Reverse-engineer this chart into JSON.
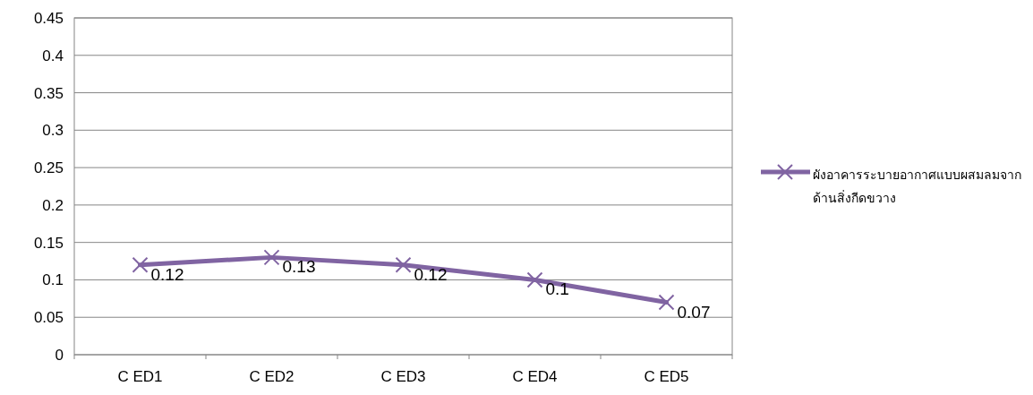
{
  "chart_data": {
    "type": "line",
    "categories": [
      "C ED1",
      "C ED2",
      "C ED3",
      "C ED4",
      "C ED5"
    ],
    "series": [
      {
        "name": "ผังอาคารระบายอากาศแบบผสมลมจากด้านสิ่งกีดขวาง",
        "color": "#8064a2",
        "values": [
          0.12,
          0.13,
          0.12,
          0.1,
          0.07
        ]
      }
    ],
    "ylim": [
      0,
      0.45
    ],
    "yticks": [
      0,
      0.05,
      0.1,
      0.15,
      0.2,
      0.25,
      0.3,
      0.35,
      0.4,
      0.45
    ],
    "grid": "y",
    "legend": "right",
    "marker": "cross",
    "data_labels": true
  }
}
